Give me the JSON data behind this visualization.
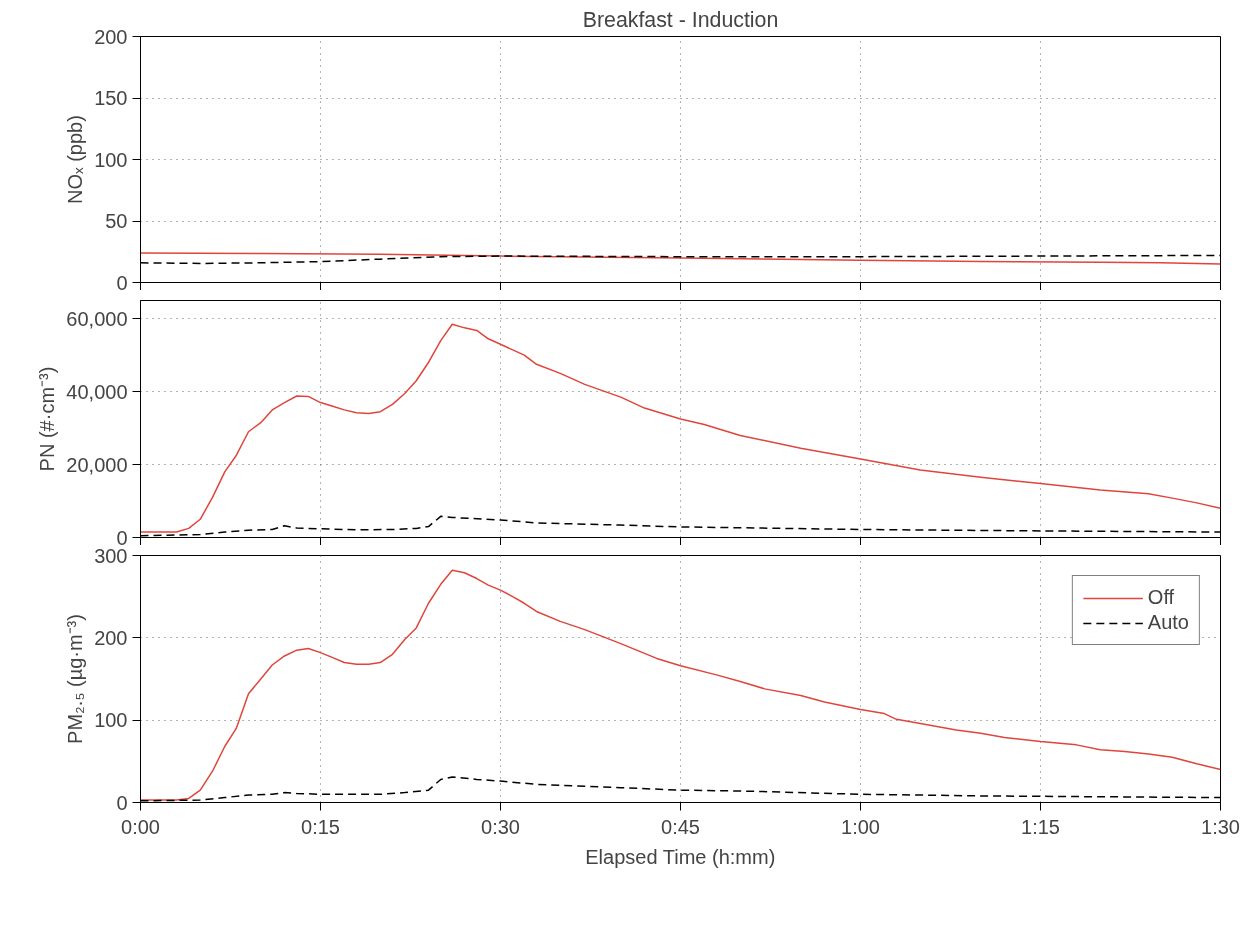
{
  "chart_data": [
    {
      "type": "line",
      "title": "Breakfast - Induction",
      "ylabel": "NOₓ (ppb)",
      "xlim": [
        0,
        1.5
      ],
      "ylim": [
        0,
        200
      ],
      "yticks": [
        0,
        50,
        100,
        150,
        200
      ],
      "xticks": [
        {
          "value": 0,
          "label": null
        },
        {
          "value": 0.25,
          "label": null
        },
        {
          "value": 0.5,
          "label": null
        },
        {
          "value": 0.75,
          "label": null
        },
        {
          "value": 1,
          "label": null
        },
        {
          "value": 1.25,
          "label": null
        },
        {
          "value": 1.5,
          "label": null
        }
      ],
      "tick_labels": "y",
      "grid": true,
      "series": [
        {
          "color": "#e0453c",
          "line_style": "solid",
          "x": [
            0,
            0.167,
            0.333,
            0.5,
            0.75,
            1,
            1.167,
            1.333,
            1.417,
            1.5
          ],
          "values": [
            24,
            23.5,
            23,
            21.5,
            20,
            18,
            17,
            16.5,
            16,
            15
          ]
        },
        {
          "color": "#000000",
          "line_style": "dashed",
          "x": [
            0,
            0.083,
            0.167,
            0.25,
            0.333,
            0.417,
            0.5,
            0.75,
            1,
            1.25,
            1.5
          ],
          "values": [
            16,
            15.5,
            16,
            17,
            19,
            21,
            21.5,
            21,
            21,
            21.5,
            22
          ]
        }
      ]
    },
    {
      "type": "line",
      "ylabel": "PN (#·cm⁻³)",
      "xlim": [
        0,
        1.5
      ],
      "ylim": [
        0,
        65000
      ],
      "yticks": [
        0,
        {
          "value": 20000,
          "label": "20,000"
        },
        {
          "value": 40000,
          "label": "40,000"
        },
        {
          "value": 60000,
          "label": "60,000"
        }
      ],
      "xticks": [
        {
          "value": 0,
          "label": null
        },
        {
          "value": 0.25,
          "label": null
        },
        {
          "value": 0.5,
          "label": null
        },
        {
          "value": 0.75,
          "label": null
        },
        {
          "value": 1,
          "label": null
        },
        {
          "value": 1.25,
          "label": null
        },
        {
          "value": 1.5,
          "label": null
        }
      ],
      "tick_labels": "y",
      "grid": true,
      "series": [
        {
          "color": "#e0453c",
          "line_style": "solid",
          "x": [
            0,
            0.05,
            0.067,
            0.083,
            0.1,
            0.117,
            0.133,
            0.15,
            0.167,
            0.183,
            0.2,
            0.217,
            0.233,
            0.25,
            0.267,
            0.283,
            0.3,
            0.317,
            0.333,
            0.35,
            0.367,
            0.383,
            0.4,
            0.417,
            0.433,
            0.45,
            0.467,
            0.483,
            0.5,
            0.533,
            0.55,
            0.583,
            0.617,
            0.667,
            0.7,
            0.75,
            0.783,
            0.833,
            0.917,
            1,
            1.083,
            1.167,
            1.25,
            1.333,
            1.4,
            1.433,
            1.467,
            1.5
          ],
          "values": [
            1500,
            1500,
            2500,
            5000,
            11000,
            18000,
            22500,
            29000,
            31500,
            35000,
            37000,
            38800,
            38700,
            37000,
            36000,
            35000,
            34200,
            34000,
            34500,
            36500,
            39500,
            43000,
            48000,
            54000,
            58500,
            57500,
            56800,
            54500,
            53000,
            50000,
            47500,
            45000,
            42000,
            38500,
            35500,
            32500,
            31000,
            28000,
            24500,
            21500,
            18500,
            16500,
            14800,
            13000,
            12000,
            10800,
            9500,
            8000
          ]
        },
        {
          "color": "#000000",
          "line_style": "dashed",
          "x": [
            0,
            0.083,
            0.117,
            0.15,
            0.183,
            0.2,
            0.217,
            0.25,
            0.3,
            0.35,
            0.383,
            0.4,
            0.417,
            0.433,
            0.5,
            0.55,
            0.667,
            0.75,
            1,
            1.25,
            1.5
          ],
          "values": [
            500,
            800,
            1500,
            2000,
            2200,
            3200,
            2600,
            2400,
            2100,
            2200,
            2500,
            3000,
            5800,
            5500,
            4800,
            4000,
            3400,
            2900,
            2200,
            1800,
            1500
          ]
        }
      ]
    },
    {
      "type": "line",
      "ylabel": "PM₂.₅ (µg·m⁻³)",
      "xlabel": "Elapsed Time (h:mm)",
      "xlim": [
        0,
        1.5
      ],
      "ylim": [
        0,
        300
      ],
      "yticks": [
        0,
        100,
        200,
        300
      ],
      "xticks": [
        {
          "value": 0,
          "label": "0:00"
        },
        {
          "value": 0.25,
          "label": "0:15"
        },
        {
          "value": 0.5,
          "label": "0:30"
        },
        {
          "value": 0.75,
          "label": "0:45"
        },
        {
          "value": 1,
          "label": "1:00"
        },
        {
          "value": 1.25,
          "label": "1:15"
        },
        {
          "value": 1.5,
          "label": "1:30"
        }
      ],
      "grid": true,
      "legend": "top right",
      "series": [
        {
          "name": "Off",
          "color": "#e0453c",
          "line_style": "solid",
          "x": [
            0,
            0.05,
            0.067,
            0.083,
            0.1,
            0.117,
            0.133,
            0.15,
            0.167,
            0.183,
            0.2,
            0.217,
            0.233,
            0.25,
            0.267,
            0.283,
            0.3,
            0.317,
            0.333,
            0.35,
            0.367,
            0.383,
            0.4,
            0.417,
            0.433,
            0.45,
            0.467,
            0.483,
            0.5,
            0.517,
            0.533,
            0.55,
            0.583,
            0.617,
            0.667,
            0.717,
            0.75,
            0.8,
            0.833,
            0.867,
            0.917,
            0.95,
            1,
            1.033,
            1.05,
            1.083,
            1.133,
            1.167,
            1.2,
            1.25,
            1.3,
            1.333,
            1.367,
            1.4,
            1.433,
            1.467,
            1.5
          ],
          "values": [
            3,
            3,
            5,
            15,
            38,
            68,
            90,
            132,
            150,
            167,
            178,
            185,
            187,
            182,
            176,
            170,
            168,
            168,
            170,
            180,
            198,
            212,
            242,
            265,
            282,
            279,
            272,
            264,
            258,
            250,
            242,
            232,
            220,
            210,
            193,
            175,
            166,
            155,
            147,
            138,
            130,
            122,
            113,
            108,
            101,
            96,
            88,
            84,
            79,
            74,
            70,
            64,
            62,
            59,
            55,
            47,
            40
          ]
        },
        {
          "name": "Auto",
          "color": "#000000",
          "line_style": "dashed",
          "x": [
            0,
            0.083,
            0.117,
            0.15,
            0.183,
            0.2,
            0.217,
            0.25,
            0.3,
            0.333,
            0.367,
            0.4,
            0.417,
            0.433,
            0.467,
            0.5,
            0.55,
            0.667,
            0.75,
            0.833,
            1,
            1.167,
            1.333,
            1.5
          ],
          "values": [
            2,
            3,
            6,
            9,
            10,
            12,
            11,
            10,
            10,
            10,
            12,
            15,
            28,
            31,
            28,
            26,
            22,
            18,
            15,
            14,
            10,
            8,
            7,
            6
          ]
        }
      ]
    }
  ]
}
